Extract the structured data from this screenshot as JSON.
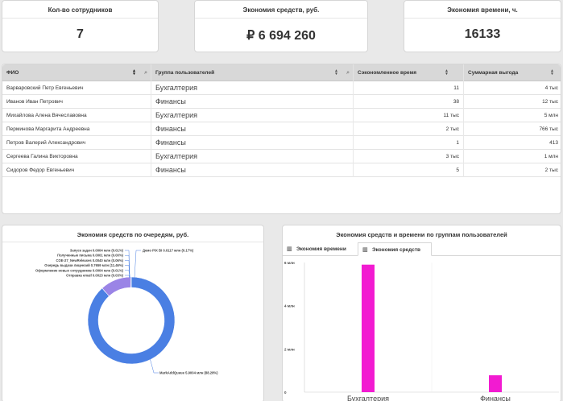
{
  "kpis": {
    "employees": {
      "title": "Кол-во сотрудников",
      "value": "7"
    },
    "savings": {
      "title": "Экономия средств, руб.",
      "value": "₽ 6 694 260"
    },
    "time": {
      "title": "Экономия времени, ч.",
      "value": "16133"
    }
  },
  "table": {
    "columns": [
      "ФИО",
      "Группа пользователей",
      "Сэкономленное время",
      "Суммарная выгода"
    ],
    "rows": [
      {
        "name": "Варваровский Петр Евгеньевич",
        "group": "Бухгалтерия",
        "time": "11",
        "benefit": "4 тыс"
      },
      {
        "name": "Иванов Иван Петрович",
        "group": "Финансы",
        "time": "38",
        "benefit": "12 тыс"
      },
      {
        "name": "Михайлова Алена Вячеславовна",
        "group": "Бухгалтерия",
        "time": "11 тыс",
        "benefit": "5 млн"
      },
      {
        "name": "Перминова Маргарита Андреевна",
        "group": "Финансы",
        "time": "2 тыс",
        "benefit": "766 тыс"
      },
      {
        "name": "Петров Валерий Александрович",
        "group": "Финансы",
        "time": "1",
        "benefit": "413"
      },
      {
        "name": "Сергеева Галина Викторовна",
        "group": "Бухгалтерия",
        "time": "3 тыс",
        "benefit": "1 млн"
      },
      {
        "name": "Сидоров Федор Евгеньевич",
        "group": "Финансы",
        "time": "5",
        "benefit": "2 тыс"
      }
    ]
  },
  "pie_panel": {
    "title": "Экономия средств по очередям, руб."
  },
  "bar_panel": {
    "title": "Экономия средств и времени по группам пользователей",
    "tabs": [
      {
        "label": "Экономия времени",
        "icon": "bar-chart-icon",
        "active": false
      },
      {
        "label": "Экономия средств",
        "icon": "bar-chart-icon",
        "active": true
      }
    ]
  },
  "chart_data": [
    {
      "type": "pie",
      "title": "Экономия средств по очередям, руб.",
      "slices": [
        {
          "label": "MarkAddQueue 5.9004 млн (88.28%)",
          "value": 5.9004,
          "color": "#4a7fe3"
        },
        {
          "label": "Запуск задач 0.0004 млн (0.01%)",
          "value": 0.0004,
          "color": "#3b3b8f"
        },
        {
          "label": "Полученные письма 0.0001 млн (0.00%)",
          "value": 0.0001,
          "color": "#6b4fbf"
        },
        {
          "label": "COE-27_NewReleases 0.0040 млн (0.06%)",
          "value": 0.004,
          "color": "#7e66d4"
        },
        {
          "label": "Очередь выдачи лицензий 0.7659 млн (11.46%)",
          "value": 0.7659,
          "color": "#9a84e6"
        },
        {
          "label": "Оформление новых сотрудников 0.0004 млн (0.01%)",
          "value": 0.0004,
          "color": "#5b56c9"
        },
        {
          "label": "Отправка email 0.0023 млн (0.03%)",
          "value": 0.0023,
          "color": "#4d69d9"
        },
        {
          "label": "Демо PIX BI 0.0117 млн (0.17%)",
          "value": 0.0117,
          "color": "#6a9ae8"
        }
      ]
    },
    {
      "type": "bar",
      "title": "Экономия средств и времени по группам пользователей",
      "categories": [
        "Бухгалтерия",
        "Финансы"
      ],
      "values": [
        5.9,
        0.78
      ],
      "ylim": [
        0,
        6
      ],
      "yticks": [
        0,
        2,
        4,
        6
      ],
      "ytick_labels": [
        "0",
        "2 млн",
        "4 млн",
        "6 млн"
      ],
      "color": "#f21bd1"
    }
  ]
}
